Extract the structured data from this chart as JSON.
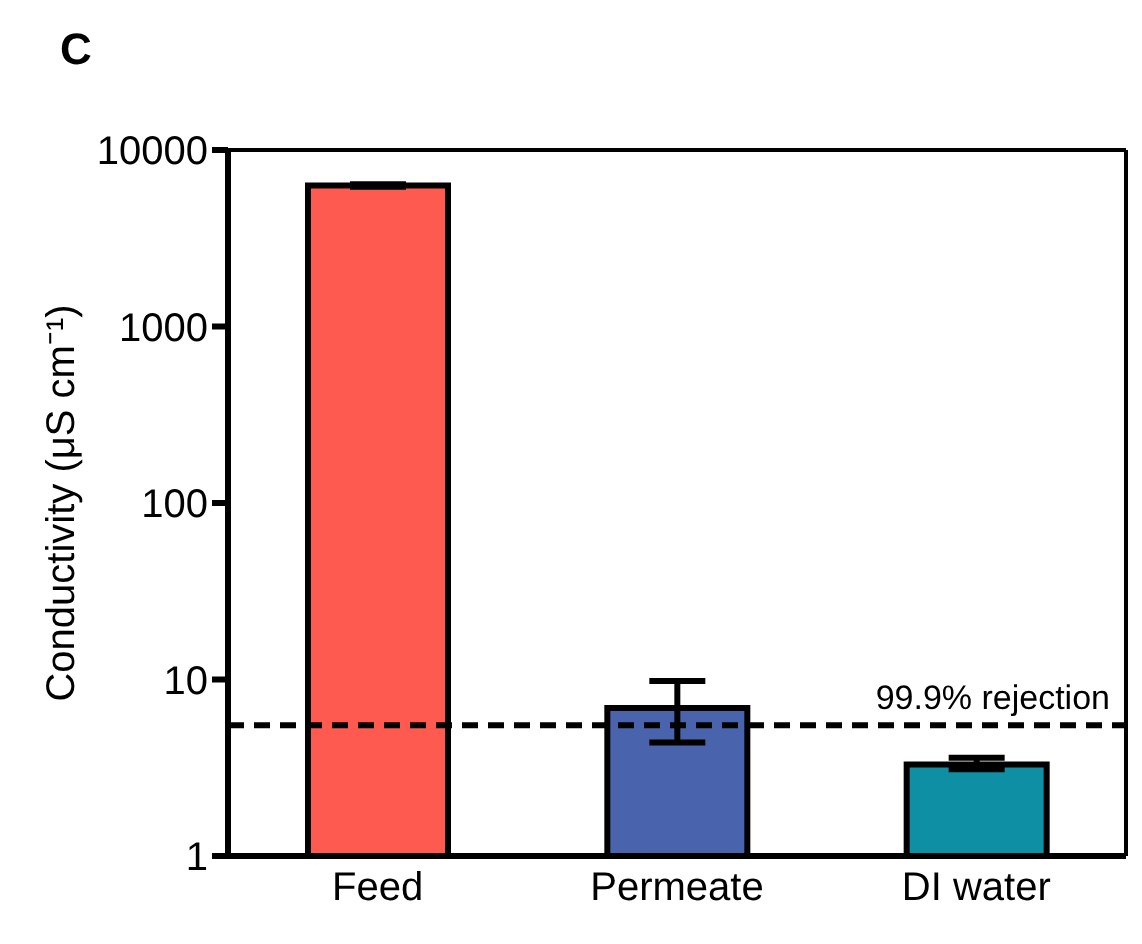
{
  "chart_data": {
    "type": "bar",
    "title": "C",
    "ylabel": "Conductivity (μS cm⁻¹)",
    "categories": [
      "Feed",
      "Permeate",
      "DI water"
    ],
    "values": [
      6300,
      6.9,
      3.3
    ],
    "colors": [
      "#ff5a50",
      "#4a63ad",
      "#0e8fa3"
    ],
    "errors": [
      [
        6200,
        6400
      ],
      [
        4.4,
        9.8
      ],
      [
        3.1,
        3.6
      ]
    ],
    "log": true,
    "ylim": [
      1,
      10000
    ],
    "yticks": [
      1,
      10,
      100,
      1000,
      10000
    ],
    "ref_lines": [
      {
        "axis": "y",
        "value": 5.5,
        "label": "99.9% rejection",
        "color": "#000000",
        "line_style": "dashed"
      }
    ],
    "grid": false,
    "legend": false
  }
}
